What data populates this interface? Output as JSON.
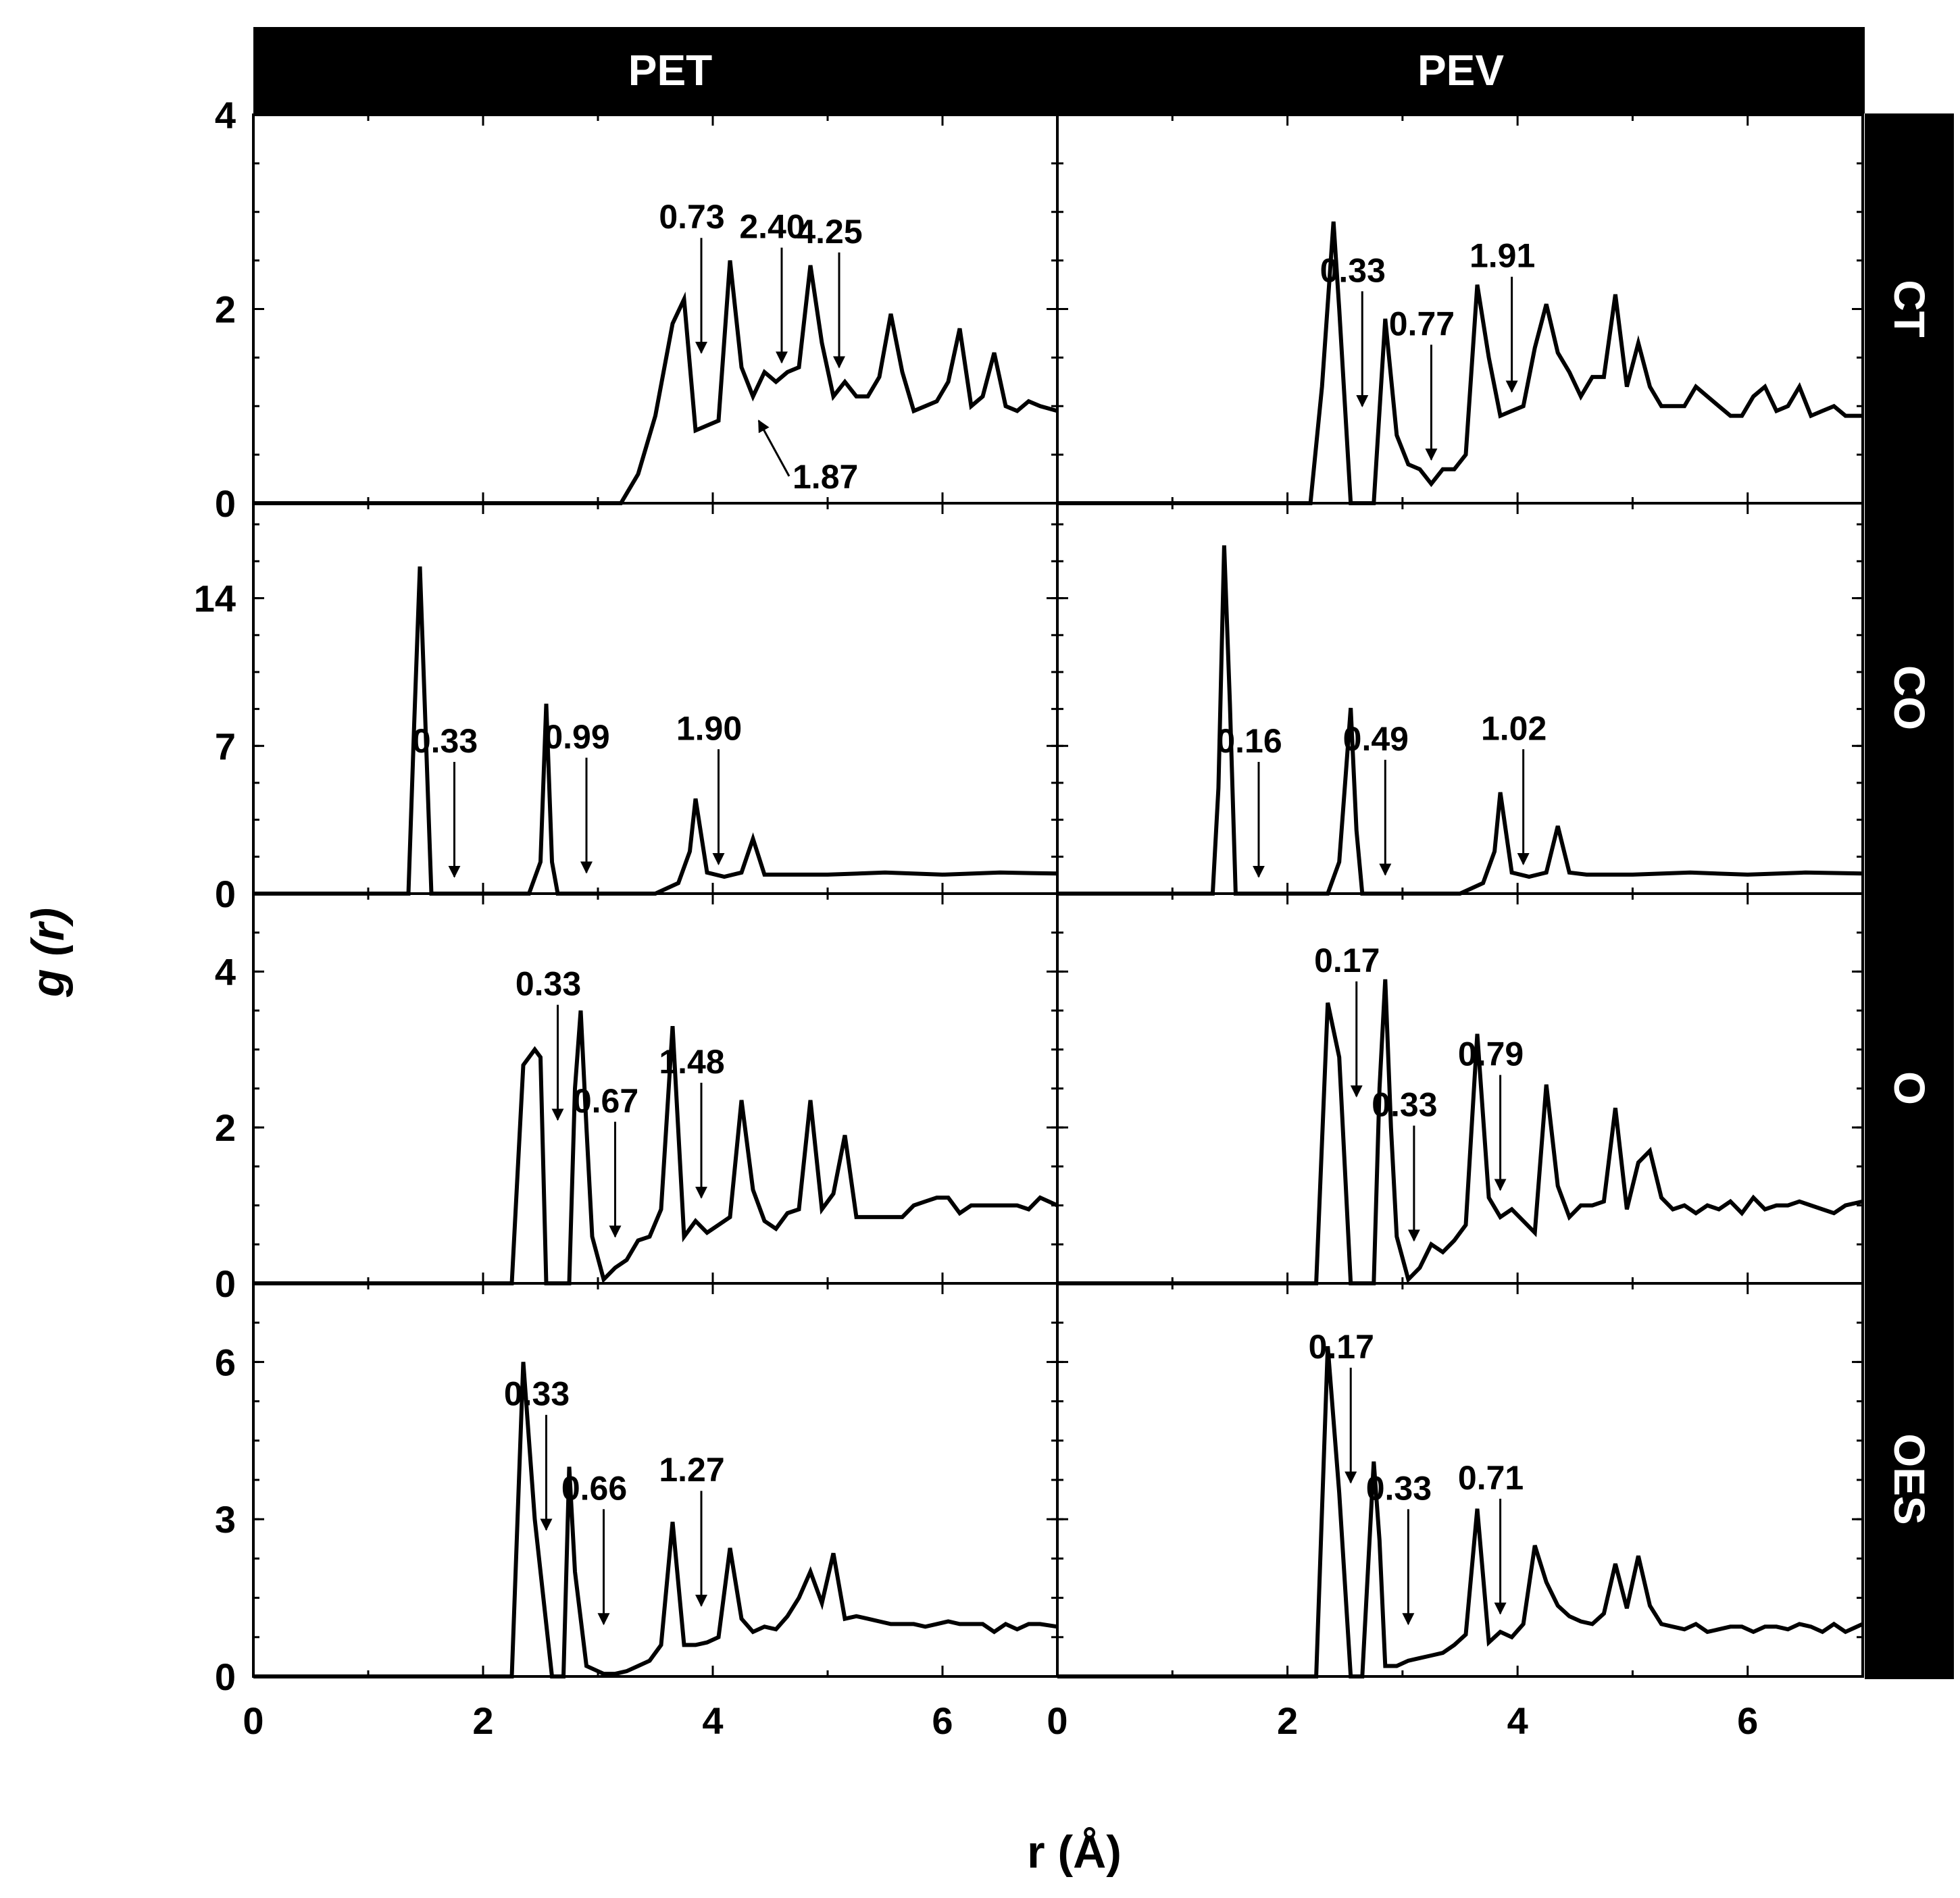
{
  "figure": {
    "ylabel": "g (r)",
    "xlabel": "r (Å)",
    "columns": [
      "PET",
      "PEV"
    ],
    "rows": [
      "CT",
      "CO",
      "O",
      "OES"
    ],
    "xticks": [
      "0",
      "2",
      "4",
      "6"
    ],
    "yticks": {
      "CT": [
        "0",
        "2",
        "4"
      ],
      "CO": [
        "0",
        "7",
        "14"
      ],
      "O": [
        "0",
        "2",
        "4"
      ],
      "OES": [
        "0",
        "3",
        "6"
      ]
    }
  },
  "chart_data": [
    {
      "type": "line",
      "column": "PET",
      "row": "CT",
      "xlim": [
        0,
        7
      ],
      "ylim": [
        0,
        4
      ],
      "x": [
        0,
        3.2,
        3.35,
        3.5,
        3.65,
        3.75,
        3.85,
        3.95,
        4.05,
        4.15,
        4.25,
        4.35,
        4.45,
        4.55,
        4.65,
        4.75,
        4.85,
        4.95,
        5.05,
        5.15,
        5.25,
        5.35,
        5.45,
        5.55,
        5.65,
        5.75,
        5.85,
        5.95,
        6.05,
        6.15,
        6.25,
        6.35,
        6.45,
        6.55,
        6.65,
        6.75,
        6.85,
        7.0
      ],
      "y": [
        0,
        0,
        0.3,
        0.9,
        1.85,
        2.1,
        0.75,
        0.8,
        0.85,
        2.5,
        1.4,
        1.1,
        1.35,
        1.25,
        1.35,
        1.4,
        2.45,
        1.65,
        1.1,
        1.25,
        1.1,
        1.1,
        1.3,
        1.95,
        1.35,
        0.95,
        1.0,
        1.05,
        1.25,
        1.8,
        1.0,
        1.1,
        1.55,
        1.0,
        0.95,
        1.05,
        1.0,
        0.95
      ],
      "annotations": [
        {
          "text": "0.73",
          "x": 3.9,
          "y": 1.55
        },
        {
          "text": "2.40",
          "x": 4.6,
          "y": 1.45
        },
        {
          "text": "4.25",
          "x": 5.1,
          "y": 1.4
        },
        {
          "text": "1.87",
          "x": 4.4,
          "y": 0.85
        }
      ]
    },
    {
      "type": "line",
      "column": "PEV",
      "row": "CT",
      "xlim": [
        0,
        7
      ],
      "ylim": [
        0,
        4
      ],
      "x": [
        0,
        2.2,
        2.3,
        2.4,
        2.45,
        2.55,
        2.65,
        2.75,
        2.85,
        2.95,
        3.05,
        3.15,
        3.25,
        3.35,
        3.45,
        3.55,
        3.65,
        3.75,
        3.85,
        3.95,
        4.05,
        4.15,
        4.25,
        4.35,
        4.45,
        4.55,
        4.65,
        4.75,
        4.85,
        4.95,
        5.05,
        5.15,
        5.25,
        5.35,
        5.45,
        5.55,
        5.65,
        5.75,
        5.85,
        5.95,
        6.05,
        6.15,
        6.25,
        6.35,
        6.45,
        6.55,
        6.65,
        6.75,
        6.85,
        7.0
      ],
      "y": [
        0,
        0,
        1.2,
        2.9,
        2.0,
        0,
        0,
        0,
        1.9,
        0.7,
        0.4,
        0.35,
        0.2,
        0.35,
        0.35,
        0.5,
        2.25,
        1.5,
        0.9,
        0.95,
        1.0,
        1.6,
        2.05,
        1.55,
        1.35,
        1.1,
        1.3,
        1.3,
        2.15,
        1.2,
        1.65,
        1.2,
        1.0,
        1.0,
        1.0,
        1.2,
        1.1,
        1.0,
        0.9,
        0.9,
        1.1,
        1.2,
        0.95,
        1.0,
        1.2,
        0.9,
        0.95,
        1.0,
        0.9,
        0.9
      ],
      "annotations": [
        {
          "text": "0.33",
          "x": 2.65,
          "y": 1.0
        },
        {
          "text": "0.77",
          "x": 3.25,
          "y": 0.45
        },
        {
          "text": "1.91",
          "x": 3.95,
          "y": 1.15
        }
      ]
    },
    {
      "type": "line",
      "column": "PET",
      "row": "CO",
      "xlim": [
        0,
        7
      ],
      "ylim": [
        0,
        18.5
      ],
      "x": [
        0,
        1.35,
        1.4,
        1.45,
        1.55,
        1.6,
        2.4,
        2.5,
        2.55,
        2.6,
        2.65,
        2.7,
        3.5,
        3.7,
        3.8,
        3.85,
        3.95,
        4.1,
        4.25,
        4.35,
        4.45,
        4.6,
        5.0,
        5.5,
        6.0,
        6.5,
        7.0
      ],
      "y": [
        0,
        0,
        8.0,
        15.5,
        0,
        0,
        0,
        1.5,
        9.0,
        1.5,
        0,
        0,
        0,
        0.5,
        2.0,
        4.5,
        1.0,
        0.8,
        1.0,
        2.6,
        0.9,
        0.9,
        0.9,
        1.0,
        0.9,
        1.0,
        0.95
      ],
      "annotations": [
        {
          "text": "0.33",
          "x": 1.75,
          "y": 0.8
        },
        {
          "text": "0.99",
          "x": 2.9,
          "y": 1.0
        },
        {
          "text": "1.90",
          "x": 4.05,
          "y": 1.4
        }
      ]
    },
    {
      "type": "line",
      "column": "PEV",
      "row": "CO",
      "xlim": [
        0,
        7
      ],
      "ylim": [
        0,
        18.5
      ],
      "x": [
        0,
        1.35,
        1.4,
        1.45,
        1.5,
        1.55,
        2.35,
        2.45,
        2.55,
        2.6,
        2.65,
        2.7,
        3.5,
        3.7,
        3.8,
        3.85,
        3.95,
        4.1,
        4.25,
        4.35,
        4.45,
        4.6,
        5.0,
        5.5,
        6.0,
        6.5,
        7.0
      ],
      "y": [
        0,
        0,
        5.0,
        16.5,
        9.0,
        0,
        0,
        1.5,
        8.8,
        3.0,
        0,
        0,
        0,
        0.5,
        2.0,
        4.8,
        1.0,
        0.8,
        1.0,
        3.2,
        1.0,
        0.9,
        0.9,
        1.0,
        0.9,
        1.0,
        0.95
      ],
      "annotations": [
        {
          "text": "0.16",
          "x": 1.75,
          "y": 0.8
        },
        {
          "text": "0.49",
          "x": 2.85,
          "y": 0.9
        },
        {
          "text": "1.02",
          "x": 4.05,
          "y": 1.4
        }
      ]
    },
    {
      "type": "line",
      "column": "PET",
      "row": "O",
      "xlim": [
        0,
        7
      ],
      "ylim": [
        0,
        5
      ],
      "x": [
        0,
        2.25,
        2.35,
        2.45,
        2.5,
        2.55,
        2.75,
        2.8,
        2.85,
        2.9,
        2.95,
        3.05,
        3.15,
        3.25,
        3.35,
        3.45,
        3.55,
        3.65,
        3.75,
        3.85,
        3.95,
        4.05,
        4.15,
        4.25,
        4.35,
        4.45,
        4.55,
        4.65,
        4.75,
        4.85,
        4.95,
        5.05,
        5.15,
        5.25,
        5.35,
        5.45,
        5.55,
        5.65,
        5.75,
        5.85,
        5.95,
        6.05,
        6.15,
        6.25,
        6.35,
        6.45,
        6.55,
        6.65,
        6.75,
        6.85,
        7.0
      ],
      "y": [
        0,
        0,
        2.8,
        3.0,
        2.9,
        0,
        0,
        2.5,
        3.5,
        2.0,
        0.6,
        0.05,
        0.2,
        0.3,
        0.55,
        0.6,
        0.95,
        3.3,
        0.6,
        0.8,
        0.65,
        0.75,
        0.85,
        2.35,
        1.2,
        0.8,
        0.7,
        0.9,
        0.95,
        2.35,
        0.95,
        1.15,
        1.9,
        0.85,
        0.85,
        0.85,
        0.85,
        0.85,
        1.0,
        1.05,
        1.1,
        1.1,
        0.9,
        1.0,
        1.0,
        1.0,
        1.0,
        1.0,
        0.95,
        1.1,
        1.0
      ],
      "annotations": [
        {
          "text": "0.33",
          "x": 2.65,
          "y": 2.1
        },
        {
          "text": "0.67",
          "x": 3.15,
          "y": 0.6
        },
        {
          "text": "1.48",
          "x": 3.9,
          "y": 1.1
        }
      ]
    },
    {
      "type": "line",
      "column": "PEV",
      "row": "O",
      "xlim": [
        0,
        7
      ],
      "ylim": [
        0,
        5
      ],
      "x": [
        0,
        2.25,
        2.35,
        2.45,
        2.55,
        2.75,
        2.8,
        2.85,
        2.9,
        2.95,
        3.05,
        3.15,
        3.25,
        3.35,
        3.45,
        3.55,
        3.65,
        3.75,
        3.85,
        3.95,
        4.05,
        4.15,
        4.25,
        4.35,
        4.45,
        4.55,
        4.65,
        4.75,
        4.85,
        4.95,
        5.05,
        5.15,
        5.25,
        5.35,
        5.45,
        5.55,
        5.65,
        5.75,
        5.85,
        5.95,
        6.05,
        6.15,
        6.25,
        6.35,
        6.45,
        6.55,
        6.65,
        6.75,
        6.85,
        7.0
      ],
      "y": [
        0,
        0,
        3.6,
        2.9,
        0,
        0,
        2.5,
        3.9,
        2.0,
        0.6,
        0.05,
        0.2,
        0.5,
        0.4,
        0.55,
        0.75,
        3.2,
        1.1,
        0.85,
        0.95,
        0.8,
        0.65,
        2.55,
        1.25,
        0.85,
        1.0,
        1.0,
        1.05,
        2.25,
        0.95,
        1.55,
        1.7,
        1.1,
        0.95,
        1.0,
        0.9,
        1.0,
        0.95,
        1.05,
        0.9,
        1.1,
        0.95,
        1.0,
        1.0,
        1.05,
        1.0,
        0.95,
        0.9,
        1.0,
        1.05
      ],
      "annotations": [
        {
          "text": "0.17",
          "x": 2.6,
          "y": 2.4
        },
        {
          "text": "0.33",
          "x": 3.1,
          "y": 0.55
        },
        {
          "text": "0.79",
          "x": 3.85,
          "y": 1.2
        }
      ]
    },
    {
      "type": "line",
      "column": "PET",
      "row": "OES",
      "xlim": [
        0,
        7
      ],
      "ylim": [
        0,
        7.5
      ],
      "x": [
        0,
        2.25,
        2.35,
        2.45,
        2.6,
        2.7,
        2.75,
        2.8,
        2.9,
        3.05,
        3.15,
        3.25,
        3.35,
        3.45,
        3.55,
        3.65,
        3.75,
        3.85,
        3.95,
        4.05,
        4.15,
        4.25,
        4.35,
        4.45,
        4.55,
        4.65,
        4.75,
        4.85,
        4.95,
        5.05,
        5.15,
        5.25,
        5.35,
        5.45,
        5.55,
        5.65,
        5.75,
        5.85,
        5.95,
        6.05,
        6.15,
        6.25,
        6.35,
        6.45,
        6.55,
        6.65,
        6.75,
        6.85,
        7.0
      ],
      "y": [
        0,
        0,
        6.0,
        3.0,
        0,
        0,
        4.0,
        2.0,
        0.2,
        0.05,
        0.05,
        0.1,
        0.2,
        0.3,
        0.6,
        2.95,
        0.6,
        0.6,
        0.65,
        0.75,
        2.45,
        1.1,
        0.85,
        0.95,
        0.9,
        1.15,
        1.5,
        2.0,
        1.4,
        2.35,
        1.1,
        1.15,
        1.1,
        1.05,
        1.0,
        1.0,
        1.0,
        0.95,
        1.0,
        1.05,
        1.0,
        1.0,
        1.0,
        0.85,
        1.0,
        0.9,
        1.0,
        1.0,
        0.95
      ],
      "annotations": [
        {
          "text": "0.33",
          "x": 2.55,
          "y": 2.8
        },
        {
          "text": "0.66",
          "x": 3.05,
          "y": 1.0
        },
        {
          "text": "1.27",
          "x": 3.9,
          "y": 1.35
        }
      ]
    },
    {
      "type": "line",
      "column": "PEV",
      "row": "OES",
      "xlim": [
        0,
        7
      ],
      "ylim": [
        0,
        7.5
      ],
      "x": [
        0,
        2.25,
        2.35,
        2.45,
        2.55,
        2.65,
        2.75,
        2.8,
        2.85,
        2.95,
        3.05,
        3.15,
        3.25,
        3.35,
        3.45,
        3.55,
        3.65,
        3.75,
        3.85,
        3.95,
        4.05,
        4.15,
        4.25,
        4.35,
        4.45,
        4.55,
        4.65,
        4.75,
        4.85,
        4.95,
        5.05,
        5.15,
        5.25,
        5.35,
        5.45,
        5.55,
        5.65,
        5.75,
        5.85,
        5.95,
        6.05,
        6.15,
        6.25,
        6.35,
        6.45,
        6.55,
        6.65,
        6.75,
        6.85,
        7.0
      ],
      "y": [
        0,
        0,
        6.3,
        3.5,
        0,
        0,
        4.1,
        2.6,
        0.2,
        0.2,
        0.3,
        0.35,
        0.4,
        0.45,
        0.6,
        0.8,
        3.2,
        0.65,
        0.85,
        0.75,
        1.0,
        2.5,
        1.8,
        1.35,
        1.15,
        1.05,
        1.0,
        1.2,
        2.15,
        1.3,
        2.3,
        1.35,
        1.0,
        0.95,
        0.9,
        1.0,
        0.85,
        0.9,
        0.95,
        0.95,
        0.85,
        0.95,
        0.95,
        0.9,
        1.0,
        0.95,
        0.85,
        1.0,
        0.85,
        1.0
      ],
      "annotations": [
        {
          "text": "0.17",
          "x": 2.55,
          "y": 3.7
        },
        {
          "text": "0.33",
          "x": 3.05,
          "y": 1.0
        },
        {
          "text": "0.71",
          "x": 3.85,
          "y": 1.2
        }
      ]
    }
  ]
}
